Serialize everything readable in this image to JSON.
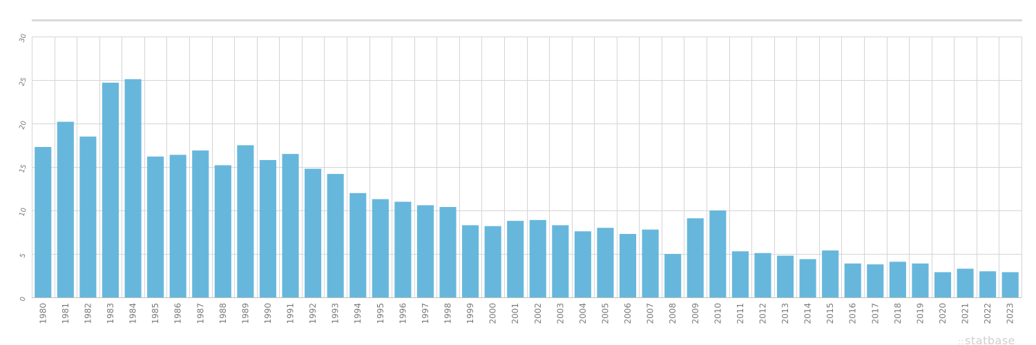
{
  "brand": {
    "dots": "::",
    "name": "statbase"
  },
  "colors": {
    "bar": "#67b7dc",
    "grid": "#d4d4d4",
    "top_rule": "#d9d9d9",
    "tick_text": "#7a7a7a"
  },
  "chart_data": {
    "type": "bar",
    "title": "",
    "xlabel": "",
    "ylabel": "",
    "ylim": [
      0,
      30
    ],
    "y_ticks": [
      "0",
      "5",
      "10",
      "15",
      "20",
      "25",
      "30"
    ],
    "grid": true,
    "legend": "none",
    "categories": [
      "1980",
      "1981",
      "1982",
      "1983",
      "1984",
      "1985",
      "1986",
      "1987",
      "1988",
      "1989",
      "1990",
      "1991",
      "1992",
      "1993",
      "1994",
      "1995",
      "1996",
      "1997",
      "1998",
      "1999",
      "2000",
      "2001",
      "2002",
      "2003",
      "2004",
      "2005",
      "2006",
      "2007",
      "2008",
      "2009",
      "2010",
      "2011",
      "2012",
      "2013",
      "2014",
      "2015",
      "2016",
      "2017",
      "2018",
      "2019",
      "2020",
      "2021",
      "2022",
      "2023"
    ],
    "values": [
      17.3,
      20.2,
      18.5,
      24.7,
      25.1,
      16.2,
      16.4,
      16.9,
      15.2,
      17.5,
      15.8,
      16.5,
      14.8,
      14.2,
      12.0,
      11.3,
      11.0,
      10.6,
      10.4,
      8.3,
      8.2,
      8.8,
      8.9,
      8.3,
      7.6,
      8.0,
      7.3,
      7.8,
      5.0,
      9.1,
      10.0,
      5.3,
      5.1,
      4.8,
      4.4,
      5.4,
      3.9,
      3.8,
      4.1,
      3.9,
      2.9,
      3.3,
      3.0,
      2.9
    ]
  }
}
